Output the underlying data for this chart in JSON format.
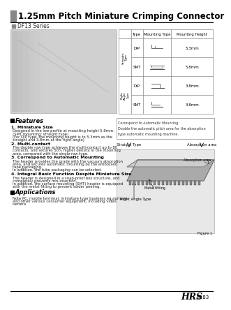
{
  "title": "1.25mm Pitch Miniature Crimping Connector",
  "series": "DF13 Series",
  "bg_color": "#ffffff",
  "table_headers": [
    "Type",
    "Mounting Type",
    "Mounting Height"
  ],
  "row_side_labels": [
    "Straight Type",
    "Straight Type",
    "Right Angle Type",
    "Right Angle Type"
  ],
  "row_types": [
    "DIP",
    "SMT",
    "DIP",
    "SMT"
  ],
  "row_heights_val": [
    "5.3mm",
    "5.8mm",
    "",
    "3.8mm"
  ],
  "features_title": "Features",
  "features": [
    [
      "1. Miniature Size",
      "Designed in the low-profile at mounting height 5.8mm.\n(SMT mounting: straight type)\n(For DIP type, the mounting height is to 5.3mm as the\nstraight and 3.8mm at the right angle)"
    ],
    [
      "2. Multi-contact",
      "The double row type achieves the multi-contact up to 80\ncontacts, and secures 50% higher density in the mounting\narea, compared with the single row type."
    ],
    [
      "3. Correspond to Automatic Mounting",
      "The header provides the grade with the vacuum absorption\narea, and secures automatic mounting by the embossed\ntape packaging.\nIn addition, the tube packaging can be selected."
    ],
    [
      "4. Integral Basic Function Despite Miniature Size",
      "The header is designed in a snap-proof box structure, and\ncompletely prevents mis-insertion.\nIn addition, the surface mounting (SMT) header is equipped\nwith the metal fitting to prevent solder peeling."
    ]
  ],
  "applications_title": "Applications",
  "applications_text": "Note PC, mobile terminal, miniature type business equipment,\nand other various consumer equipment, including video\ncamera",
  "correspond_text": "Correspond to Automatic Mounting\nDouble the automatic pitch area for the absorption\ntype automatic mounting machine.",
  "straight_label": "Straight Type",
  "right_angle_label": "Right Angle Type",
  "absorption_label": "Absorption area",
  "metal_fitting_label": "Metal fitting",
  "figure_label": "Figure 1",
  "page_label": "B183",
  "brand_label": "HRS"
}
